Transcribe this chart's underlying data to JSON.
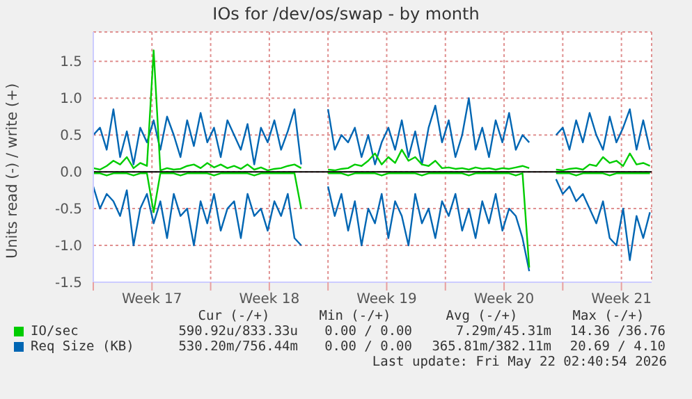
{
  "chart_data": {
    "type": "line",
    "title": "IOs for /dev/os/swap - by month",
    "ylabel": "Units read (-) / write (+)",
    "x": [
      "2026-04-19T00:00",
      "2026-04-19T09:36",
      "2026-04-19T19:12",
      "2026-04-20T04:48",
      "2026-04-20T14:24",
      "2026-04-21T00:00",
      "2026-04-21T09:36",
      "2026-04-21T19:12",
      "2026-04-22T04:48",
      "2026-04-22T14:24",
      "2026-04-23T00:00",
      "2026-04-23T09:36",
      "2026-04-23T19:12",
      "2026-04-24T04:48",
      "2026-04-24T14:24",
      "2026-04-25T00:00",
      "2026-04-25T09:36",
      "2026-04-25T19:12",
      "2026-04-26T04:48",
      "2026-04-26T14:24",
      "2026-04-27T00:00",
      "2026-04-27T09:36",
      "2026-04-27T19:12",
      "2026-04-28T04:48",
      "2026-04-28T14:24",
      "2026-04-29T00:00",
      "2026-04-29T09:36",
      "2026-04-29T19:12",
      "2026-04-30T04:48",
      "2026-04-30T14:24",
      "2026-05-01T00:00",
      "2026-05-01T09:36",
      "2026-05-01T19:12",
      "2026-05-02T04:48",
      "2026-05-02T14:24",
      "2026-05-03T00:00",
      "2026-05-03T09:36",
      "2026-05-03T19:12",
      "2026-05-04T04:48",
      "2026-05-04T14:24",
      "2026-05-05T00:00",
      "2026-05-05T09:36",
      "2026-05-05T19:12",
      "2026-05-06T04:48",
      "2026-05-06T14:24",
      "2026-05-07T00:00",
      "2026-05-07T09:36",
      "2026-05-07T19:12",
      "2026-05-08T04:48",
      "2026-05-08T14:24",
      "2026-05-09T00:00",
      "2026-05-09T09:36",
      "2026-05-09T19:12",
      "2026-05-10T04:48",
      "2026-05-10T14:24",
      "2026-05-11T00:00",
      "2026-05-11T09:36",
      "2026-05-11T19:12",
      "2026-05-12T04:48",
      "2026-05-12T14:24",
      "2026-05-13T00:00",
      "2026-05-13T09:36",
      "2026-05-13T19:12",
      "2026-05-14T04:48",
      "2026-05-14T14:24",
      "2026-05-15T00:00",
      "2026-05-15T09:36",
      "2026-05-15T19:12",
      "2026-05-16T04:48",
      "2026-05-16T14:24",
      "2026-05-17T00:00",
      "2026-05-17T09:36",
      "2026-05-17T19:12",
      "2026-05-18T04:48",
      "2026-05-18T14:24",
      "2026-05-19T00:00",
      "2026-05-19T09:36",
      "2026-05-19T19:12",
      "2026-05-20T04:48",
      "2026-05-20T14:24",
      "2026-05-21T00:00",
      "2026-05-21T09:36",
      "2026-05-21T19:12",
      "2026-05-22T04:48"
    ],
    "series": [
      {
        "name": "IO/sec",
        "color": "#00cc00",
        "values": [
          0.05,
          0.03,
          0.08,
          0.15,
          0.1,
          0.2,
          0.05,
          0.12,
          0.08,
          1.65,
          0.02,
          0.05,
          0.03,
          0.04,
          0.08,
          0.1,
          0.05,
          0.12,
          0.06,
          0.1,
          0.05,
          0.08,
          0.04,
          0.1,
          0.03,
          0.06,
          0.02,
          0.04,
          0.05,
          0.08,
          0.1,
          0.05,
          null,
          null,
          null,
          0.03,
          0.02,
          0.04,
          0.05,
          0.1,
          0.08,
          0.15,
          0.25,
          0.1,
          0.2,
          0.12,
          0.3,
          0.15,
          0.2,
          0.1,
          0.08,
          0.15,
          0.05,
          0.06,
          0.04,
          0.05,
          0.03,
          0.06,
          0.04,
          0.05,
          0.03,
          0.05,
          0.04,
          0.06,
          0.08,
          0.05,
          null,
          null,
          null,
          0.03,
          0.02,
          0.04,
          0.05,
          0.03,
          0.1,
          0.08,
          0.2,
          0.12,
          0.15,
          0.08,
          0.25,
          0.1,
          0.12,
          0.08
        ]
      },
      {
        "color": "#00cc00",
        "values": [
          -0.02,
          -0.02,
          -0.05,
          -0.02,
          -0.02,
          -0.02,
          -0.05,
          -0.02,
          -0.02,
          -0.55,
          -0.02,
          -0.02,
          -0.02,
          -0.05,
          -0.02,
          -0.02,
          -0.02,
          -0.02,
          -0.05,
          -0.02,
          -0.02,
          -0.02,
          -0.02,
          -0.02,
          -0.05,
          -0.02,
          -0.02,
          -0.02,
          -0.02,
          -0.02,
          -0.02,
          -0.5,
          null,
          null,
          null,
          -0.02,
          -0.02,
          -0.02,
          -0.05,
          -0.02,
          -0.02,
          -0.02,
          -0.02,
          -0.05,
          -0.02,
          -0.02,
          -0.02,
          -0.02,
          -0.02,
          -0.05,
          -0.02,
          -0.02,
          -0.02,
          -0.02,
          -0.02,
          -0.02,
          -0.05,
          -0.02,
          -0.02,
          -0.02,
          -0.02,
          -0.02,
          -0.02,
          -0.05,
          -0.02,
          -1.3,
          null,
          null,
          null,
          -0.02,
          -0.02,
          -0.02,
          -0.05,
          -0.02,
          -0.02,
          -0.02,
          -0.02,
          -0.05,
          -0.02,
          -0.02,
          -0.02,
          -0.02,
          -0.02,
          -0.02
        ]
      },
      {
        "name": "Req Size (KB)",
        "color": "#0066b3",
        "values": [
          0.5,
          0.6,
          0.3,
          0.85,
          0.2,
          0.55,
          0.1,
          0.6,
          0.4,
          0.7,
          0.3,
          0.75,
          0.5,
          0.2,
          0.7,
          0.35,
          0.8,
          0.4,
          0.6,
          0.2,
          0.7,
          0.5,
          0.3,
          0.65,
          0.1,
          0.6,
          0.4,
          0.7,
          0.3,
          0.55,
          0.85,
          0.1,
          null,
          null,
          null,
          0.85,
          0.3,
          0.5,
          0.4,
          0.6,
          0.2,
          0.5,
          0.1,
          0.4,
          0.6,
          0.3,
          0.7,
          0.2,
          0.55,
          0.1,
          0.6,
          0.9,
          0.4,
          0.7,
          0.2,
          0.5,
          1.0,
          0.3,
          0.6,
          0.2,
          0.7,
          0.4,
          0.8,
          0.3,
          0.5,
          0.4,
          null,
          null,
          null,
          0.5,
          0.6,
          0.3,
          0.7,
          0.4,
          0.8,
          0.5,
          0.3,
          0.75,
          0.4,
          0.6,
          0.85,
          0.3,
          0.7,
          0.3
        ]
      },
      {
        "color": "#0066b3",
        "values": [
          -0.2,
          -0.5,
          -0.3,
          -0.4,
          -0.6,
          -0.25,
          -1.0,
          -0.5,
          -0.3,
          -0.7,
          -0.4,
          -0.9,
          -0.3,
          -0.6,
          -0.5,
          -1.0,
          -0.4,
          -0.7,
          -0.3,
          -0.8,
          -0.5,
          -0.4,
          -0.9,
          -0.3,
          -0.6,
          -0.5,
          -0.8,
          -0.4,
          -0.6,
          -0.3,
          -0.9,
          -1.0,
          null,
          null,
          null,
          -0.2,
          -0.6,
          -0.3,
          -0.8,
          -0.4,
          -1.0,
          -0.5,
          -0.7,
          -0.3,
          -0.9,
          -0.4,
          -0.6,
          -1.0,
          -0.3,
          -0.7,
          -0.5,
          -0.9,
          -0.4,
          -0.6,
          -0.3,
          -0.8,
          -0.5,
          -0.9,
          -0.4,
          -0.7,
          -0.3,
          -0.8,
          -0.5,
          -0.6,
          -0.9,
          -1.35,
          null,
          null,
          null,
          -0.1,
          -0.3,
          -0.2,
          -0.4,
          -0.3,
          -0.5,
          -0.7,
          -0.4,
          -0.9,
          -1.0,
          -0.5,
          -1.2,
          -0.6,
          -0.9,
          -0.55
        ]
      }
    ],
    "xlim": [
      "2026-04-19T00:00",
      "2026-05-22T07:12"
    ],
    "xticks": [
      {
        "value": "2026-04-19T00:00",
        "label": null
      },
      {
        "value": "2026-04-22T12:00",
        "label": "Week 17"
      },
      {
        "value": "2026-04-26T00:00",
        "label": null
      },
      {
        "value": "2026-04-29T12:00",
        "label": "Week 18"
      },
      {
        "value": "2026-05-03T00:00",
        "label": null
      },
      {
        "value": "2026-05-06T12:00",
        "label": "Week 19"
      },
      {
        "value": "2026-05-10T00:00",
        "label": null
      },
      {
        "value": "2026-05-13T12:00",
        "label": "Week 20"
      },
      {
        "value": "2026-05-17T00:00",
        "label": null
      },
      {
        "value": "2026-05-20T12:00",
        "label": "Week 21"
      }
    ],
    "ylim": [
      -1.5,
      1.9
    ],
    "yticks": [
      -1.5,
      {
        "value": -1,
        "label": "-1.0"
      },
      -0.5,
      {
        "value": 0,
        "label": "0.0"
      },
      0.5,
      {
        "value": 1,
        "label": "1.0"
      },
      1.5
    ],
    "ref_lines": [
      {
        "axis": "y",
        "value": 0,
        "color": "#000000"
      }
    ],
    "grid": true,
    "legend": "bottom",
    "marker": "none",
    "line_style": "solid",
    "annotations": [
      "Cur (-/+)",
      "Min (-/+)",
      "Avg (-/+)",
      "Max (-/+)",
      "590.92u/833.33u",
      "0.00 / 0.00",
      "7.29m/45.31m",
      "14.36 /36.76",
      "530.20m/756.44m",
      "0.00 / 0.00",
      "365.81m/382.11m",
      "20.69 / 4.10",
      "Last update: Fri May 22 02:40:54 2026"
    ]
  }
}
